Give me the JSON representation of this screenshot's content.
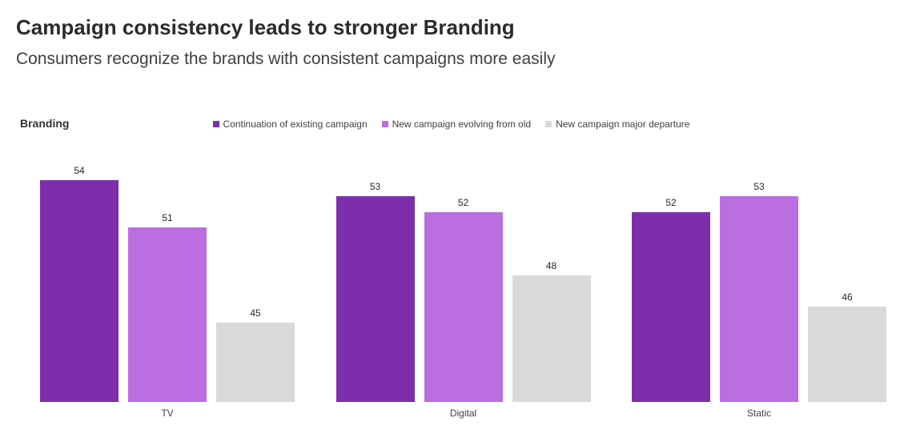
{
  "header": {
    "title": "Campaign consistency leads to stronger Branding",
    "subtitle": "Consumers recognize the brands with consistent campaigns more easily"
  },
  "chart_data": {
    "type": "bar",
    "title": "Branding",
    "categories": [
      "TV",
      "Digital",
      "Static"
    ],
    "series": [
      {
        "name": "Continuation of existing campaign",
        "color": "#7d2eaa",
        "values": [
          54,
          53,
          52
        ]
      },
      {
        "name": "New campaign evolving from old",
        "color": "#bb6ee0",
        "values": [
          51,
          52,
          53
        ]
      },
      {
        "name": "New campaign major departure",
        "color": "#d9d9d9",
        "values": [
          45,
          48,
          46
        ]
      }
    ],
    "xlabel": "",
    "ylabel": "",
    "ylim": [
      40,
      56
    ],
    "grid": false,
    "legend_position": "top-center",
    "value_labels": true
  }
}
